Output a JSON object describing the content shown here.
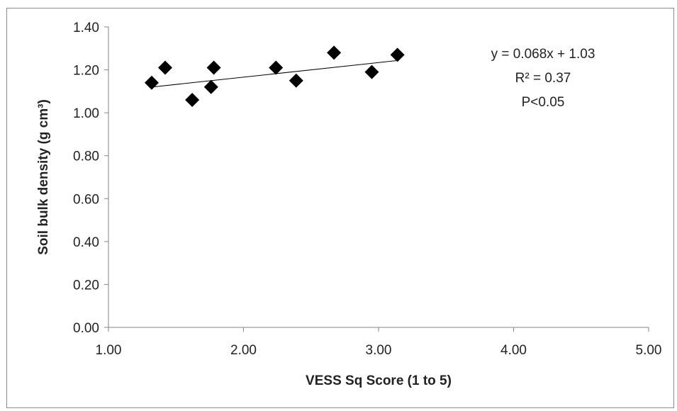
{
  "chart_data": {
    "type": "scatter",
    "title": "",
    "xlabel": "VESS Sq Score (1 to 5)",
    "ylabel": "Soil bulk density (g cm³)",
    "xlim": [
      1.0,
      5.0
    ],
    "ylim": [
      0.0,
      1.4
    ],
    "x_ticks": [
      "1.00",
      "2.00",
      "3.00",
      "4.00",
      "5.00"
    ],
    "y_ticks": [
      "0.00",
      "0.20",
      "0.40",
      "0.60",
      "0.80",
      "1.00",
      "1.20",
      "1.40"
    ],
    "grid": false,
    "marker": "diamond",
    "marker_color": "#000000",
    "points": [
      {
        "x": 1.32,
        "y": 1.14
      },
      {
        "x": 1.42,
        "y": 1.21
      },
      {
        "x": 1.62,
        "y": 1.06
      },
      {
        "x": 1.76,
        "y": 1.12
      },
      {
        "x": 1.78,
        "y": 1.21
      },
      {
        "x": 2.24,
        "y": 1.21
      },
      {
        "x": 2.39,
        "y": 1.15
      },
      {
        "x": 2.67,
        "y": 1.28
      },
      {
        "x": 2.95,
        "y": 1.19
      },
      {
        "x": 3.14,
        "y": 1.27
      }
    ],
    "trendline": {
      "type": "linear",
      "slope": 0.068,
      "intercept": 1.03,
      "x_range": [
        1.32,
        3.14
      ]
    },
    "annotations": [
      "y = 0.068x + 1.03",
      "R² = 0.37",
      "P<0.05"
    ]
  }
}
